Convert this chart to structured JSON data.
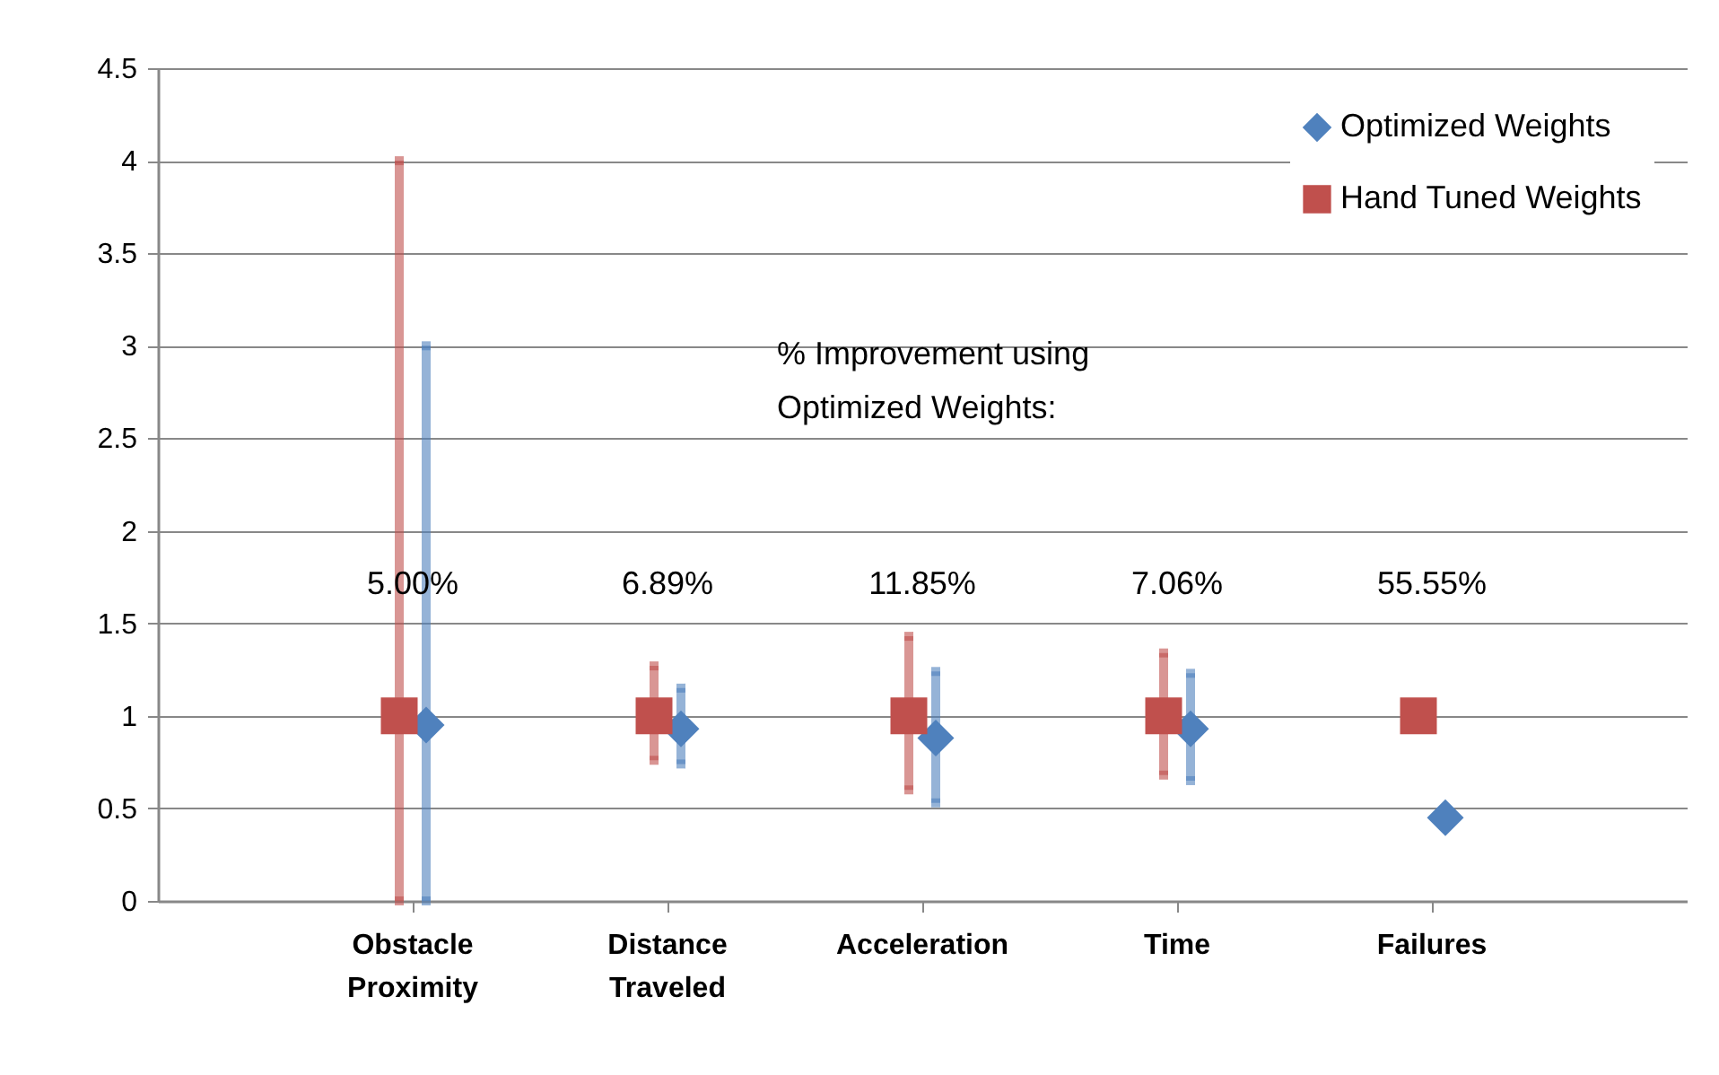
{
  "chart_data": {
    "type": "scatter",
    "categories": [
      "Obstacle Proximity",
      "Distance Traveled",
      "Acceleration",
      "Time",
      "Failures"
    ],
    "series": [
      {
        "name": "Optimized Weights",
        "color": "#4f81bd",
        "marker": "diamond",
        "values": [
          0.95,
          0.93,
          0.88,
          0.93,
          0.45
        ],
        "errors": [
          [
            0,
            3.0
          ],
          [
            0.74,
            1.15
          ],
          [
            0.53,
            1.24
          ],
          [
            0.65,
            1.23
          ],
          null
        ]
      },
      {
        "name": "Hand Tuned Weights",
        "color": "#c0504d",
        "marker": "square",
        "values": [
          1,
          1,
          1,
          1,
          1
        ],
        "errors": [
          [
            0,
            4.0
          ],
          [
            0.76,
            1.27
          ],
          [
            0.6,
            1.43
          ],
          [
            0.68,
            1.34
          ],
          null
        ]
      }
    ],
    "ylim": [
      0,
      4.5
    ],
    "yticks": [
      0,
      0.5,
      1,
      1.5,
      2,
      2.5,
      3,
      3.5,
      4,
      4.5
    ],
    "grid": "y",
    "legend": "top right",
    "annotations": [
      "% Improvement using Optimized Weights:",
      "5.00%",
      "6.89%",
      "11.85%",
      "7.06%",
      "55.55%"
    ]
  }
}
